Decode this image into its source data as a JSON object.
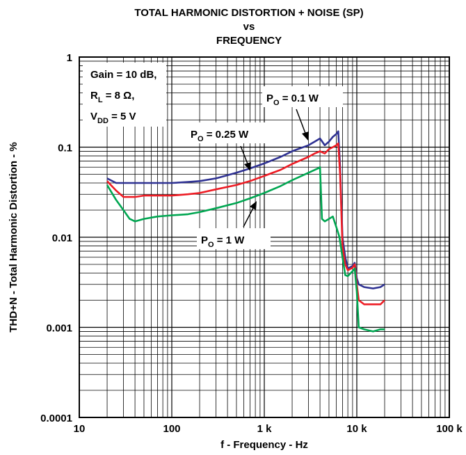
{
  "chart_data": {
    "type": "line",
    "title_lines": [
      "TOTAL HARMONIC DISTORTION + NOISE (SP)",
      "vs",
      "FREQUENCY"
    ],
    "xlabel": "f - Frequency - Hz",
    "ylabel": "THD+N - Total Harmonic Distortion - %",
    "x_scale": "log",
    "y_scale": "log",
    "xlim": [
      10,
      100000
    ],
    "ylim": [
      0.0001,
      1
    ],
    "grid": true,
    "x_ticks": [
      {
        "value": 10,
        "label": "10"
      },
      {
        "value": 100,
        "label": "100"
      },
      {
        "value": 1000,
        "label": "1 k"
      },
      {
        "value": 10000,
        "label": "10 k"
      },
      {
        "value": 100000,
        "label": "100 k"
      }
    ],
    "y_ticks": [
      {
        "value": 1,
        "label": "1"
      },
      {
        "value": 0.1,
        "label": "0.1"
      },
      {
        "value": 0.01,
        "label": "0.01"
      },
      {
        "value": 0.001,
        "label": "0.001"
      },
      {
        "value": 0.0001,
        "label": "0.0001"
      }
    ],
    "conditions": {
      "gain": {
        "prefix": "Gain = 10 dB,"
      },
      "rl": {
        "base": "R",
        "sub": "L",
        "rest": " = 8 Ω,"
      },
      "vdd": {
        "base": "V",
        "sub": "DD",
        "rest": " = 5 V"
      }
    },
    "series": [
      {
        "label_base": "P",
        "label_sub": "O",
        "label_rest": " = 0.1 W",
        "color": "#2e3192",
        "points": [
          [
            20,
            0.045
          ],
          [
            25,
            0.04
          ],
          [
            30,
            0.04
          ],
          [
            50,
            0.04
          ],
          [
            100,
            0.04
          ],
          [
            150,
            0.041
          ],
          [
            200,
            0.042
          ],
          [
            300,
            0.045
          ],
          [
            500,
            0.052
          ],
          [
            700,
            0.058
          ],
          [
            1000,
            0.066
          ],
          [
            1500,
            0.078
          ],
          [
            2000,
            0.09
          ],
          [
            3000,
            0.105
          ],
          [
            3500,
            0.115
          ],
          [
            4000,
            0.125
          ],
          [
            4500,
            0.105
          ],
          [
            5000,
            0.115
          ],
          [
            5500,
            0.13
          ],
          [
            6000,
            0.14
          ],
          [
            6300,
            0.15
          ],
          [
            6600,
            0.06
          ],
          [
            7000,
            0.01
          ],
          [
            7500,
            0.006
          ],
          [
            8000,
            0.0045
          ],
          [
            9000,
            0.0048
          ],
          [
            9500,
            0.0052
          ],
          [
            10000,
            0.0035
          ],
          [
            10500,
            0.003
          ],
          [
            12000,
            0.0028
          ],
          [
            15000,
            0.0027
          ],
          [
            18000,
            0.0028
          ],
          [
            20000,
            0.003
          ]
        ]
      },
      {
        "label_base": "P",
        "label_sub": "O",
        "label_rest": " = 0.25 W",
        "color": "#ed1c24",
        "points": [
          [
            20,
            0.042
          ],
          [
            25,
            0.033
          ],
          [
            30,
            0.028
          ],
          [
            40,
            0.028
          ],
          [
            50,
            0.029
          ],
          [
            100,
            0.029
          ],
          [
            150,
            0.03
          ],
          [
            200,
            0.031
          ],
          [
            300,
            0.034
          ],
          [
            500,
            0.038
          ],
          [
            700,
            0.042
          ],
          [
            1000,
            0.048
          ],
          [
            1500,
            0.056
          ],
          [
            2000,
            0.065
          ],
          [
            3000,
            0.078
          ],
          [
            3500,
            0.085
          ],
          [
            4000,
            0.09
          ],
          [
            4500,
            0.085
          ],
          [
            5000,
            0.095
          ],
          [
            5500,
            0.1
          ],
          [
            6000,
            0.105
          ],
          [
            6300,
            0.11
          ],
          [
            6600,
            0.05
          ],
          [
            7000,
            0.008
          ],
          [
            7500,
            0.005
          ],
          [
            8000,
            0.0043
          ],
          [
            9000,
            0.0046
          ],
          [
            9500,
            0.005
          ],
          [
            10000,
            0.003
          ],
          [
            10500,
            0.002
          ],
          [
            12000,
            0.0018
          ],
          [
            15000,
            0.0018
          ],
          [
            18000,
            0.0018
          ],
          [
            20000,
            0.002
          ]
        ]
      },
      {
        "label_base": "P",
        "label_sub": "O",
        "label_rest": " = 1 W",
        "color": "#00a651",
        "points": [
          [
            20,
            0.038
          ],
          [
            25,
            0.026
          ],
          [
            30,
            0.02
          ],
          [
            35,
            0.016
          ],
          [
            40,
            0.015
          ],
          [
            50,
            0.016
          ],
          [
            70,
            0.017
          ],
          [
            100,
            0.0175
          ],
          [
            150,
            0.018
          ],
          [
            200,
            0.019
          ],
          [
            300,
            0.021
          ],
          [
            500,
            0.024
          ],
          [
            700,
            0.027
          ],
          [
            1000,
            0.031
          ],
          [
            1500,
            0.037
          ],
          [
            2000,
            0.043
          ],
          [
            3000,
            0.052
          ],
          [
            3800,
            0.058
          ],
          [
            4000,
            0.06
          ],
          [
            4200,
            0.016
          ],
          [
            4500,
            0.015
          ],
          [
            5000,
            0.016
          ],
          [
            5500,
            0.017
          ],
          [
            6000,
            0.013
          ],
          [
            6500,
            0.01
          ],
          [
            7000,
            0.006
          ],
          [
            7500,
            0.0038
          ],
          [
            8000,
            0.0037
          ],
          [
            9000,
            0.0042
          ],
          [
            9500,
            0.0045
          ],
          [
            10000,
            0.0025
          ],
          [
            10500,
            0.001
          ],
          [
            12000,
            0.00095
          ],
          [
            15000,
            0.0009
          ],
          [
            18000,
            0.00095
          ],
          [
            20000,
            0.00095
          ]
        ]
      }
    ]
  }
}
